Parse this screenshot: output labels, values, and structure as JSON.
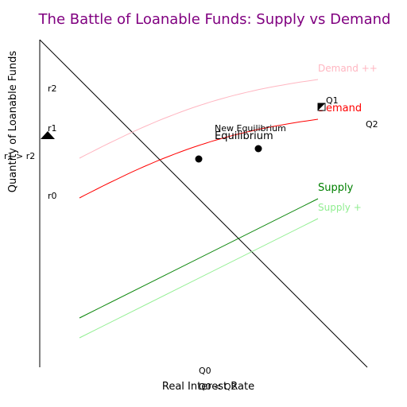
{
  "chart_data": {
    "type": "line",
    "title": "The Battle of Loanable Funds: Supply vs Demand",
    "xlabel": "Real Interest Rate",
    "ylabel": "Quantity of Loanable Funds",
    "grid": false,
    "colors": {
      "title": "#800080",
      "demand": "#ff0000",
      "demand_pp": "#ffb6c1",
      "supply": "#008000",
      "supply_p": "#90ee90",
      "axis": "#000000"
    },
    "series": [
      {
        "name": "Demand ++",
        "key": "demand_pp"
      },
      {
        "name": "Demand",
        "key": "demand"
      },
      {
        "name": "Supply",
        "key": "supply"
      },
      {
        "name": "Supply +",
        "key": "supply_p"
      }
    ],
    "annotations": {
      "r2": "r2",
      "r1": "r1",
      "r0": "r0",
      "r1_gt_r2": "r1 > r2",
      "q1": "Q1",
      "q2": "Q2",
      "q0": "Q0",
      "q0_lt_q2": "Q0 < Q2",
      "new_equilibrium": "New Equilibrium",
      "equilibrium": "Equilibrium"
    },
    "markers": [
      {
        "name": "equilibrium-point",
        "shape": "circle"
      },
      {
        "name": "new-equilibrium-point",
        "shape": "circle"
      },
      {
        "name": "r1-marker",
        "shape": "triangle"
      },
      {
        "name": "q1-marker",
        "shape": "square-half"
      }
    ]
  }
}
